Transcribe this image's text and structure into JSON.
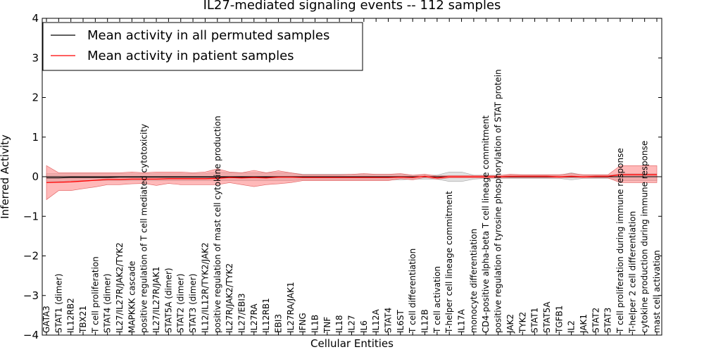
{
  "chart_data": {
    "type": "line",
    "title": "IL27-mediated signaling events -- 112 samples",
    "xlabel": "Cellular Entities",
    "ylabel": "Inferred Activity",
    "ylim": [
      -4,
      4
    ],
    "yticks": [
      "4",
      "3",
      "2",
      "1",
      "0",
      "−1",
      "−2",
      "−3",
      "−4"
    ],
    "ytick_values": [
      4,
      3,
      2,
      1,
      0,
      -1,
      -2,
      -3,
      -4
    ],
    "grid": false,
    "legend_position": "top-left",
    "colors": {
      "permuted": "#000000",
      "patient": "#ff0000",
      "permuted_band": "#c8c8c8",
      "patient_band": "#ff8080"
    },
    "categories": [
      "GATA3",
      "STAT1 (dimer)",
      "IL12RB2",
      "TBX21",
      "T cell proliferation",
      "STAT4 (dimer)",
      "IL27/IL27R/JAK2/TYK2",
      "MAPKKK cascade",
      "positive regulation of T cell mediated cytotoxicity",
      "IL27/IL27R/JAK1",
      "STAT5A (dimer)",
      "STAT2 (dimer)",
      "STAT3 (dimer)",
      "IL12/IL12R/TYK2/JAK2",
      "positive regulation of mast cell cytokine production",
      "IL27R/JAK2/TYK2",
      "IL27/EBI3",
      "IL27RA",
      "IL12RB1",
      "EBI3",
      "IL27RA/JAK1",
      "IFNG",
      "IL1B",
      "TNF",
      "IL18",
      "IL27",
      "IL6",
      "IL12A",
      "STAT4",
      "IL6ST",
      "T cell differentiation",
      "IL12B",
      "T cell activation",
      "T-helper cell lineage commitment",
      "IL17A",
      "monocyte differentiation",
      "CD4-positive alpha-beta T cell lineage commitment",
      "positive regulation of tyrosine phosphorylation of STAT protein",
      "JAK2",
      "TYK2",
      "STAT1",
      "STAT5A",
      "TGFB1",
      "IL2",
      "JAK1",
      "STAT2",
      "STAT3",
      "T cell proliferation during immune response",
      "T-helper 2 cell differentiation",
      "cytokine production during immune response",
      "mast cell activation"
    ],
    "series": [
      {
        "name": "Mean activity in all permuted samples",
        "values": [
          -0.03,
          -0.03,
          -0.02,
          -0.02,
          -0.02,
          -0.02,
          -0.01,
          -0.01,
          -0.01,
          -0.01,
          -0.01,
          -0.01,
          -0.01,
          -0.01,
          -0.01,
          -0.01,
          -0.01,
          -0.01,
          -0.01,
          -0.01,
          -0.01,
          0,
          0,
          0,
          0,
          0,
          0,
          0,
          0,
          0,
          0,
          0,
          0,
          0,
          0,
          0,
          0,
          0,
          0,
          0,
          0,
          0,
          0,
          0,
          0,
          0,
          0,
          0,
          0,
          0,
          0
        ],
        "lower": [
          -0.12,
          -0.12,
          -0.1,
          -0.1,
          -0.1,
          -0.1,
          -0.1,
          -0.1,
          -0.1,
          -0.1,
          -0.1,
          -0.1,
          -0.1,
          -0.1,
          -0.1,
          -0.1,
          -0.1,
          -0.1,
          -0.1,
          -0.1,
          -0.1,
          -0.08,
          -0.08,
          -0.08,
          -0.08,
          -0.08,
          -0.08,
          -0.08,
          -0.08,
          -0.08,
          -0.06,
          -0.06,
          -0.06,
          -0.12,
          -0.12,
          -0.06,
          -0.04,
          -0.04,
          -0.04,
          -0.04,
          -0.04,
          -0.04,
          -0.04,
          -0.08,
          -0.04,
          -0.04,
          -0.04,
          -0.1,
          -0.1,
          -0.1,
          -0.1
        ],
        "upper": [
          0.08,
          0.08,
          0.08,
          0.08,
          0.08,
          0.08,
          0.08,
          0.08,
          0.08,
          0.08,
          0.08,
          0.08,
          0.08,
          0.08,
          0.12,
          0.1,
          0.1,
          0.1,
          0.1,
          0.1,
          0.1,
          0.06,
          0.06,
          0.06,
          0.06,
          0.06,
          0.06,
          0.06,
          0.06,
          0.06,
          0.04,
          0.04,
          0.04,
          0.12,
          0.12,
          0.04,
          0.04,
          0.04,
          0.04,
          0.04,
          0.04,
          0.04,
          0.04,
          0.1,
          0.04,
          0.04,
          0.04,
          0.08,
          0.08,
          0.08,
          0.08
        ]
      },
      {
        "name": "Mean activity in patient samples",
        "values": [
          -0.15,
          -0.14,
          -0.13,
          -0.11,
          -0.09,
          -0.07,
          -0.07,
          -0.06,
          -0.06,
          -0.06,
          -0.05,
          -0.05,
          -0.05,
          -0.05,
          -0.04,
          -0.02,
          -0.03,
          -0.02,
          -0.03,
          -0.01,
          -0.01,
          -0.02,
          -0.02,
          -0.02,
          -0.02,
          -0.02,
          -0.02,
          -0.02,
          -0.02,
          -0.01,
          -0.02,
          0.01,
          -0.03,
          0,
          0,
          0,
          0,
          0,
          0.01,
          0.01,
          0.01,
          0.01,
          0,
          0.01,
          0,
          0.01,
          0.01,
          0.05,
          0.05,
          0.05,
          0.05
        ],
        "lower": [
          -0.58,
          -0.35,
          -0.35,
          -0.3,
          -0.26,
          -0.2,
          -0.2,
          -0.18,
          -0.17,
          -0.22,
          -0.17,
          -0.2,
          -0.2,
          -0.2,
          -0.2,
          -0.15,
          -0.2,
          -0.25,
          -0.2,
          -0.18,
          -0.15,
          -0.1,
          -0.1,
          -0.1,
          -0.1,
          -0.1,
          -0.1,
          -0.1,
          -0.1,
          -0.05,
          -0.08,
          -0.02,
          -0.06,
          -0.03,
          -0.03,
          -0.03,
          -0.03,
          -0.03,
          -0.03,
          -0.03,
          -0.03,
          -0.03,
          -0.03,
          -0.02,
          -0.03,
          -0.03,
          -0.03,
          -0.15,
          -0.15,
          -0.15,
          -0.15
        ],
        "upper": [
          0.28,
          0.1,
          0.1,
          0.1,
          0.1,
          0.1,
          0.1,
          0.12,
          0.1,
          0.12,
          0.12,
          0.12,
          0.1,
          0.12,
          0.2,
          0.12,
          0.1,
          0.16,
          0.1,
          0.15,
          0.1,
          0.05,
          0.05,
          0.05,
          0.05,
          0.06,
          0.08,
          0.06,
          0.06,
          0.08,
          0.04,
          0.06,
          0.02,
          0.03,
          0.03,
          0.03,
          0.03,
          0.03,
          0.06,
          0.05,
          0.05,
          0.05,
          0.05,
          0.08,
          0.05,
          0.05,
          0.05,
          0.28,
          0.28,
          0.28,
          0.28
        ]
      }
    ]
  }
}
